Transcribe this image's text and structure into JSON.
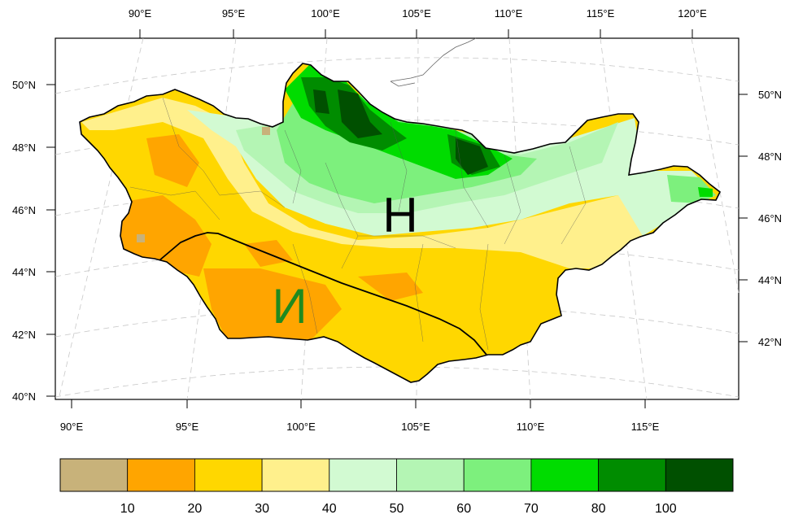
{
  "top_lon_labels": [
    "90°E",
    "95°E",
    "100°E",
    "105°E",
    "110°E",
    "115°E",
    "120°E"
  ],
  "bottom_lon_labels": [
    "90°E",
    "95°E",
    "100°E",
    "105°E",
    "110°E",
    "115°E"
  ],
  "left_lat_labels": [
    "50°N",
    "48°N",
    "46°N",
    "44°N",
    "42°N",
    "40°N"
  ],
  "right_lat_labels": [
    "50°N",
    "48°N",
    "46°N",
    "44°N",
    "42°N"
  ],
  "region_labels": {
    "north": {
      "text": "Н",
      "color": "#000000"
    },
    "south": {
      "text": "И",
      "color": "#1f8a1f"
    }
  },
  "colorbar": {
    "colors": [
      "#c8b27a",
      "#ffa500",
      "#ffd700",
      "#fff08c",
      "#d2fad2",
      "#b4f5b4",
      "#7df07d",
      "#00dc00",
      "#008c00",
      "#005000"
    ],
    "tick_labels": [
      "10",
      "20",
      "30",
      "40",
      "50",
      "60",
      "70",
      "80",
      "100"
    ]
  }
}
